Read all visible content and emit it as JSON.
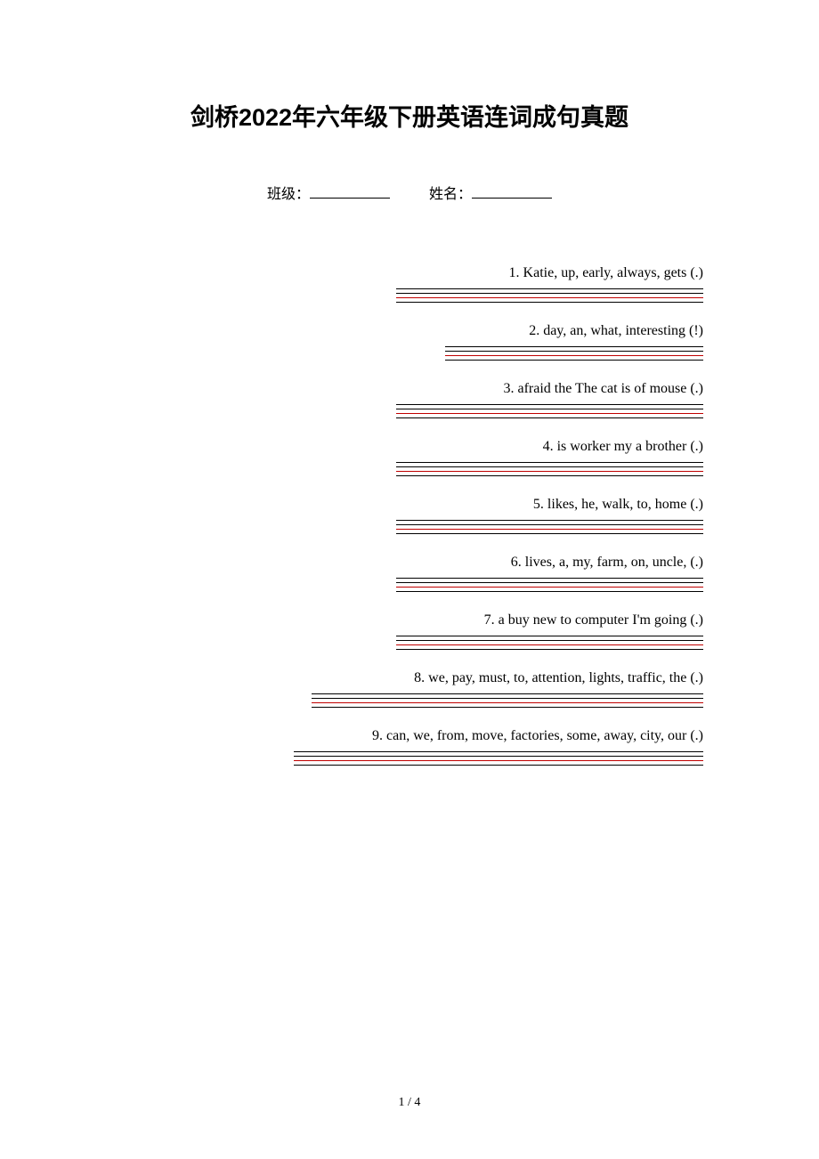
{
  "title": "剑桥2022年六年级下册英语连词成句真题",
  "class_label": "班级：",
  "name_label": "姓名：",
  "questions": [
    {
      "text": "1. Katie, up, early, always, gets (.)",
      "line_width": 345
    },
    {
      "text": "2. day, an, what, interesting (!)",
      "line_width": 290
    },
    {
      "text": "3. afraid  the  The cat  is  of  mouse (.)",
      "line_width": 345
    },
    {
      "text": "4. is  worker  my  a  brother (.)",
      "line_width": 345
    },
    {
      "text": "5. likes, he, walk, to, home (.)",
      "line_width": 345
    },
    {
      "text": "6. lives, a, my, farm, on, uncle, (.)",
      "line_width": 345
    },
    {
      "text": "7. a buy new to computer I'm going (.)",
      "line_width": 345
    },
    {
      "text": "8. we, pay, must, to, attention, lights, traffic, the (.)",
      "line_width": 440
    },
    {
      "text": "9. can, we, from, move, factories, some, away, city, our (.)",
      "line_width": 460
    }
  ],
  "page_number": "1 / 4",
  "colors": {
    "text": "#000000",
    "red_line": "#c00000",
    "background": "#ffffff"
  }
}
